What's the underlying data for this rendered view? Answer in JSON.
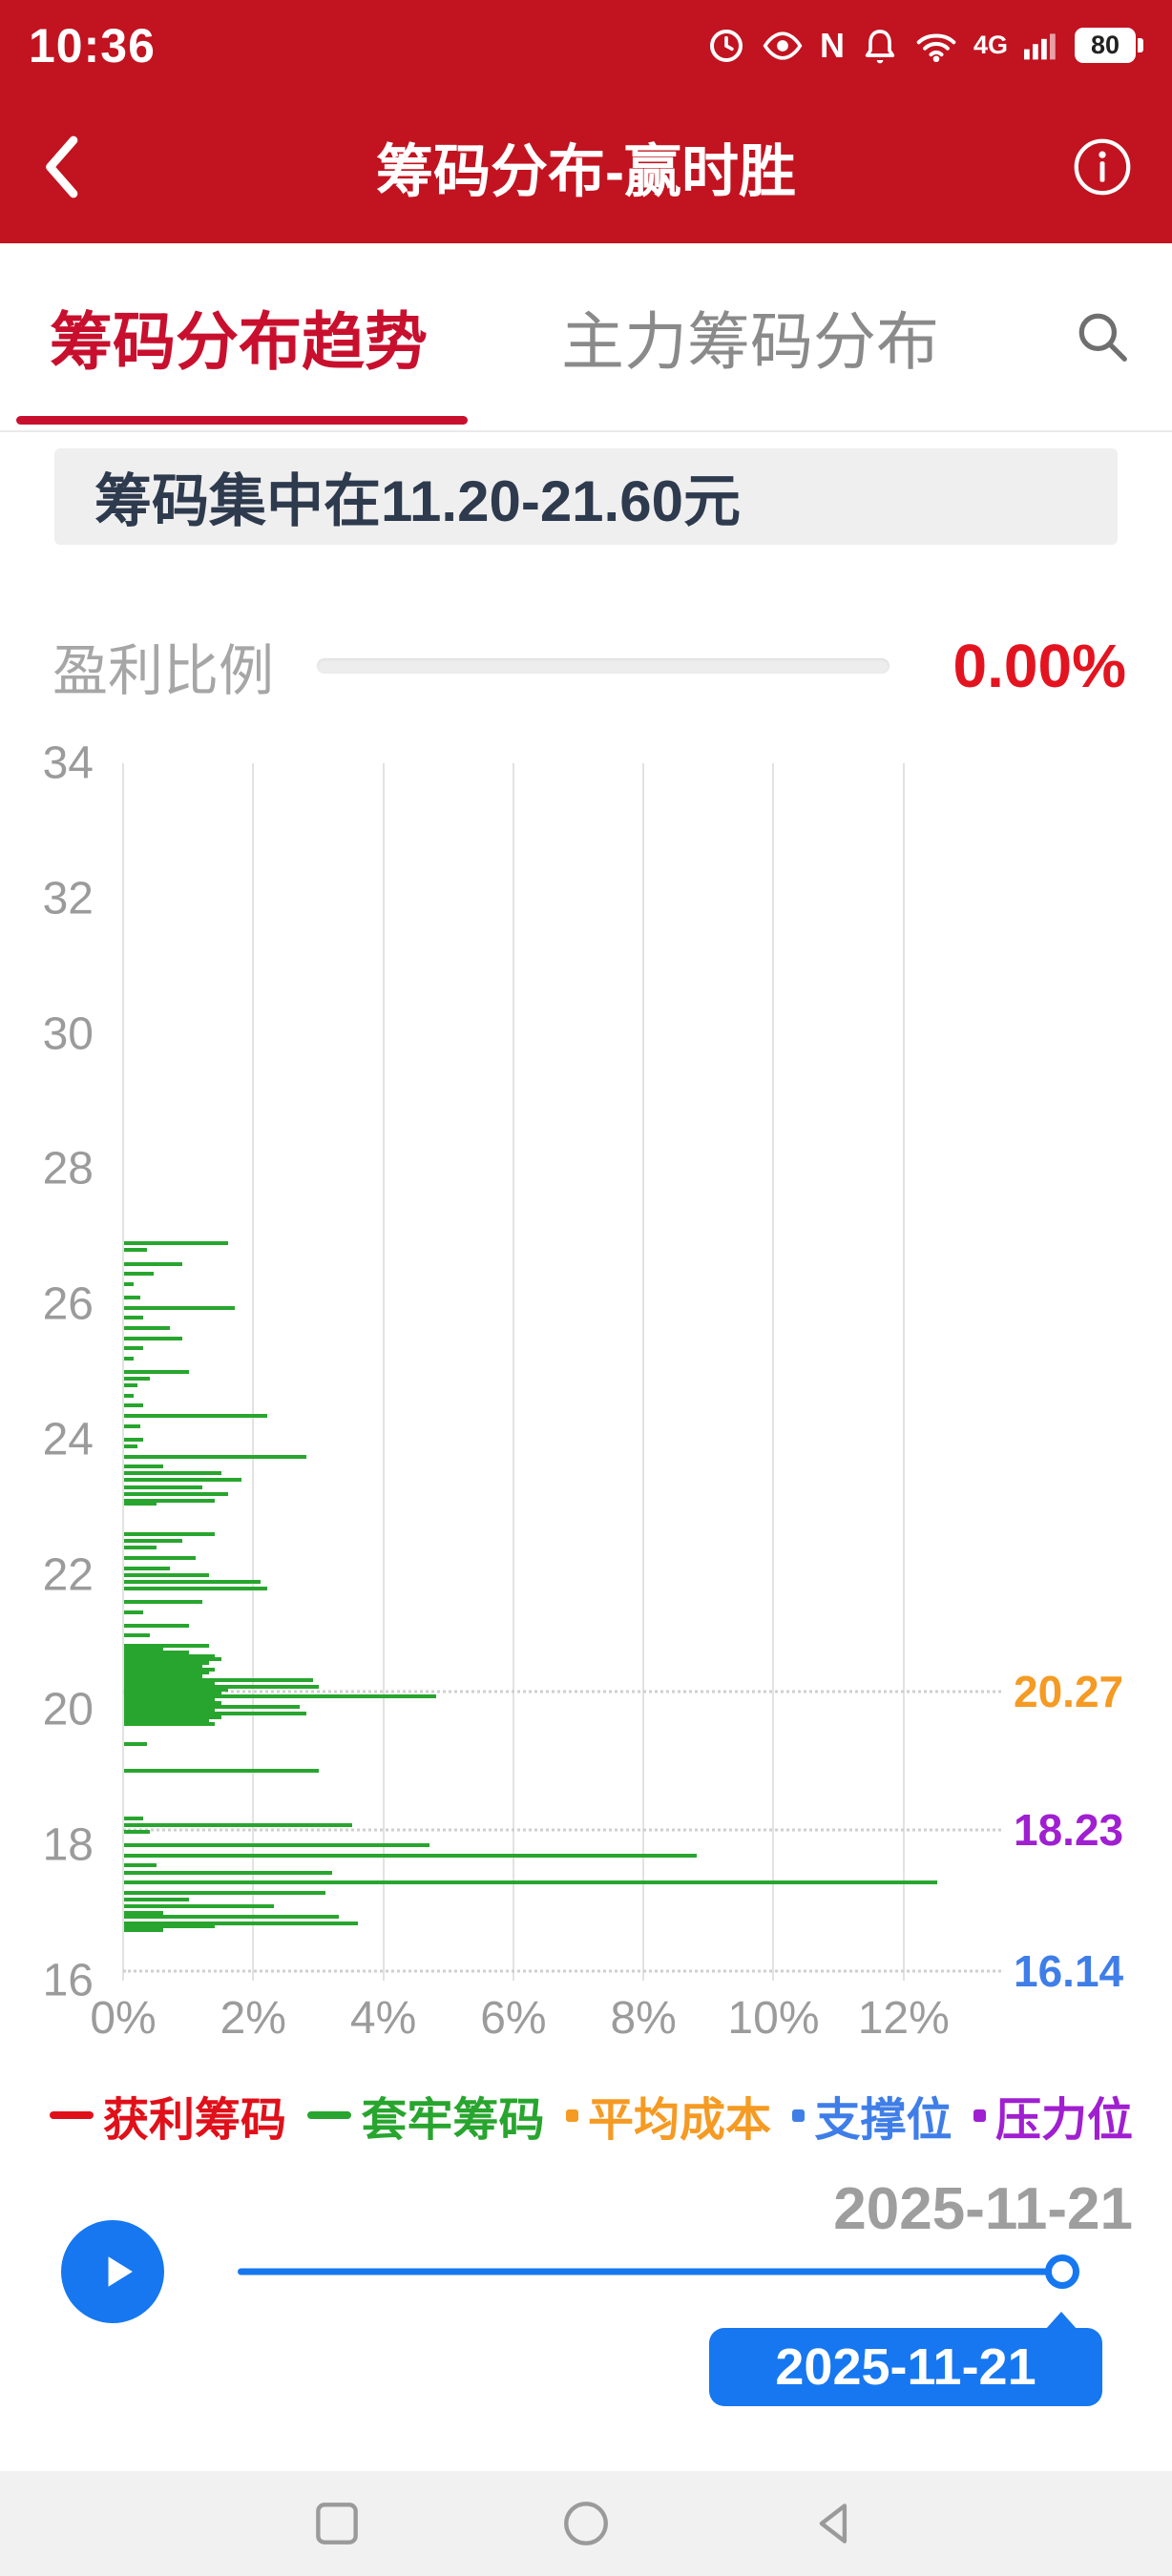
{
  "colors": {
    "brand_red": "#c21320",
    "accent_red": "#e31420",
    "tab_red": "#c8102e",
    "green": "#28a52e",
    "orange": "#f59a23",
    "blue": "#3f7ee8",
    "purple": "#a01fd0",
    "player_blue": "#1677f0"
  },
  "status_bar": {
    "time": "10:36",
    "network": "4G",
    "battery": "80"
  },
  "header": {
    "title": "筹码分布-赢时胜"
  },
  "tabs": [
    {
      "label": "筹码分布趋势",
      "active": true
    },
    {
      "label": "主力筹码分布",
      "active": false
    }
  ],
  "banner": {
    "text": "筹码集中在11.20-21.60元"
  },
  "profit": {
    "label": "盈利比例",
    "value": "0.00%",
    "percent": 0
  },
  "chart_data": {
    "type": "bar",
    "orientation": "horizontal",
    "title": "",
    "ylim": [
      16,
      34
    ],
    "xlim": [
      0,
      13.5
    ],
    "grid": "vertical",
    "y_ticks": [
      "34",
      "32",
      "30",
      "28",
      "26",
      "24",
      "22",
      "20",
      "18",
      "16"
    ],
    "x_ticks": [
      {
        "value": 0,
        "label": "0%"
      },
      {
        "value": 2,
        "label": "2%"
      },
      {
        "value": 4,
        "label": "4%"
      },
      {
        "value": 6,
        "label": "6%"
      },
      {
        "value": 8,
        "label": "8%"
      },
      {
        "value": 10,
        "label": "10%"
      },
      {
        "value": 12,
        "label": "12%"
      }
    ],
    "series": [
      {
        "name": "获利筹码",
        "color": "#e0101a",
        "bars": []
      },
      {
        "name": "套牢筹码",
        "color": "#28a52e",
        "bars": [
          [
            26.9,
            1.6
          ],
          [
            26.8,
            0.35
          ],
          [
            26.6,
            0.9
          ],
          [
            26.45,
            0.45
          ],
          [
            26.3,
            0.15
          ],
          [
            26.1,
            0.25
          ],
          [
            25.95,
            1.7
          ],
          [
            25.8,
            0.3
          ],
          [
            25.65,
            0.7
          ],
          [
            25.5,
            0.9
          ],
          [
            25.35,
            0.3
          ],
          [
            25.2,
            0.15
          ],
          [
            25.0,
            1.0
          ],
          [
            24.9,
            0.4
          ],
          [
            24.8,
            0.2
          ],
          [
            24.65,
            0.15
          ],
          [
            24.5,
            0.3
          ],
          [
            24.35,
            2.2
          ],
          [
            24.2,
            0.25
          ],
          [
            24.0,
            0.3
          ],
          [
            23.9,
            0.2
          ],
          [
            23.75,
            2.8
          ],
          [
            23.6,
            0.6
          ],
          [
            23.5,
            1.5
          ],
          [
            23.4,
            1.8
          ],
          [
            23.3,
            1.2
          ],
          [
            23.2,
            1.6
          ],
          [
            23.1,
            1.4
          ],
          [
            23.05,
            0.5
          ],
          [
            22.6,
            1.4
          ],
          [
            22.5,
            0.9
          ],
          [
            22.4,
            0.5
          ],
          [
            22.25,
            1.1
          ],
          [
            22.1,
            0.7
          ],
          [
            22.0,
            1.3
          ],
          [
            21.9,
            2.1
          ],
          [
            21.8,
            2.2
          ],
          [
            21.6,
            1.2
          ],
          [
            21.45,
            0.3
          ],
          [
            21.25,
            1.0
          ],
          [
            21.1,
            0.4
          ],
          [
            20.95,
            1.3
          ],
          [
            20.9,
            0.6
          ],
          [
            20.85,
            1.0
          ],
          [
            20.8,
            1.4
          ],
          [
            20.75,
            1.5
          ],
          [
            20.7,
            1.3
          ],
          [
            20.65,
            1.2
          ],
          [
            20.6,
            1.4
          ],
          [
            20.55,
            1.3
          ],
          [
            20.5,
            1.2
          ],
          [
            20.45,
            2.9
          ],
          [
            20.4,
            1.4
          ],
          [
            20.35,
            3.0
          ],
          [
            20.3,
            1.6
          ],
          [
            20.25,
            1.5
          ],
          [
            20.2,
            4.8
          ],
          [
            20.15,
            1.4
          ],
          [
            20.1,
            1.5
          ],
          [
            20.05,
            2.7
          ],
          [
            20.0,
            1.4
          ],
          [
            19.95,
            2.8
          ],
          [
            19.9,
            1.5
          ],
          [
            19.85,
            1.3
          ],
          [
            19.8,
            1.4
          ],
          [
            19.5,
            0.35
          ],
          [
            19.1,
            3.0
          ],
          [
            18.4,
            0.3
          ],
          [
            18.3,
            3.5
          ],
          [
            18.2,
            0.4
          ],
          [
            18.0,
            4.7
          ],
          [
            17.85,
            8.8
          ],
          [
            17.7,
            0.5
          ],
          [
            17.6,
            3.2
          ],
          [
            17.45,
            12.5
          ],
          [
            17.3,
            3.1
          ],
          [
            17.2,
            1.0
          ],
          [
            17.1,
            2.3
          ],
          [
            17.0,
            0.6
          ],
          [
            16.95,
            3.3
          ],
          [
            16.85,
            3.6
          ],
          [
            16.8,
            1.4
          ],
          [
            16.75,
            0.6
          ]
        ]
      }
    ],
    "markers": [
      {
        "price": 20.27,
        "label": "20.27",
        "color": "#f59a23",
        "name": "平均成本"
      },
      {
        "price": 18.23,
        "label": "18.23",
        "color": "#a01fd0",
        "name": "压力位"
      },
      {
        "price": 16.14,
        "label": "16.14",
        "color": "#3f7ee8",
        "name": "支撑位"
      }
    ]
  },
  "legend": [
    {
      "label": "获利筹码",
      "color": "#e0101a",
      "marker": "line"
    },
    {
      "label": "套牢筹码",
      "color": "#28a52e",
      "marker": "line"
    },
    {
      "label": "平均成本",
      "color": "#f59a23",
      "marker": "dot"
    },
    {
      "label": "支撑位",
      "color": "#3f7ee8",
      "marker": "dot"
    },
    {
      "label": "压力位",
      "color": "#a01fd0",
      "marker": "dot"
    }
  ],
  "player": {
    "date_label": "2025-11-21",
    "tooltip": "2025-11-21",
    "progress_percent": 100
  }
}
